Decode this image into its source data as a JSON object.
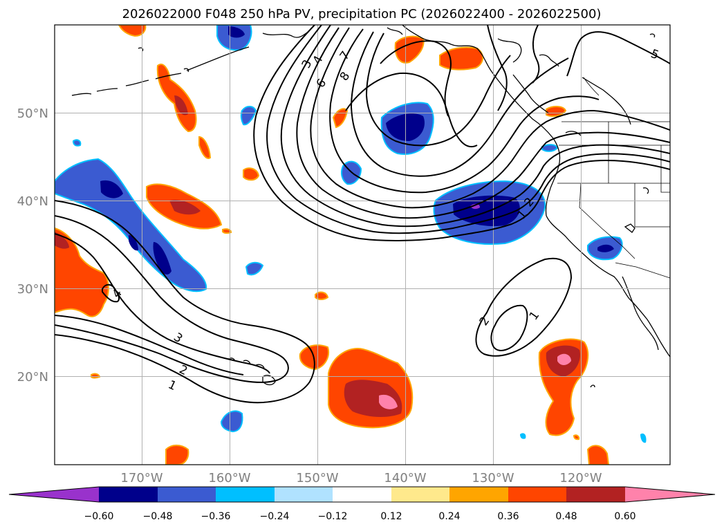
{
  "title": "2026022000 F048 250 hPa PV, precipitation PC (2026022400 - 2026022500)",
  "x_ticks": [
    "170°W",
    "160°W",
    "150°W",
    "140°W",
    "130°W",
    "120°W"
  ],
  "y_ticks": [
    "50°N",
    "40°N",
    "30°N",
    "20°N"
  ],
  "colorbar": {
    "colors": [
      "#9932cc",
      "#00008b",
      "#3b5bd1",
      "#00bfff",
      "#b0e2ff",
      "#ffffff",
      "#ffe98c",
      "#ffa500",
      "#ff4500",
      "#b22222",
      "#ff82ab"
    ],
    "labels": [
      "−0.60",
      "−0.48",
      "−0.36",
      "−0.24",
      "−0.12",
      "0.12",
      "0.24",
      "0.36",
      "0.48",
      "0.60"
    ]
  },
  "contour_labels": [
    "3",
    "4",
    "6",
    "8",
    "7",
    "5",
    "1",
    "2",
    "2",
    "1",
    "4",
    "3",
    "2",
    "1"
  ],
  "colors": {
    "positive_low": "#ffa500",
    "positive_mid": "#ff4500",
    "positive_high": "#b22222",
    "positive_max": "#ff82ab",
    "negative_low": "#3b5bd1",
    "negative_high": "#00008b",
    "negative_max": "#9932cc",
    "grid": "#b0b0b0"
  }
}
